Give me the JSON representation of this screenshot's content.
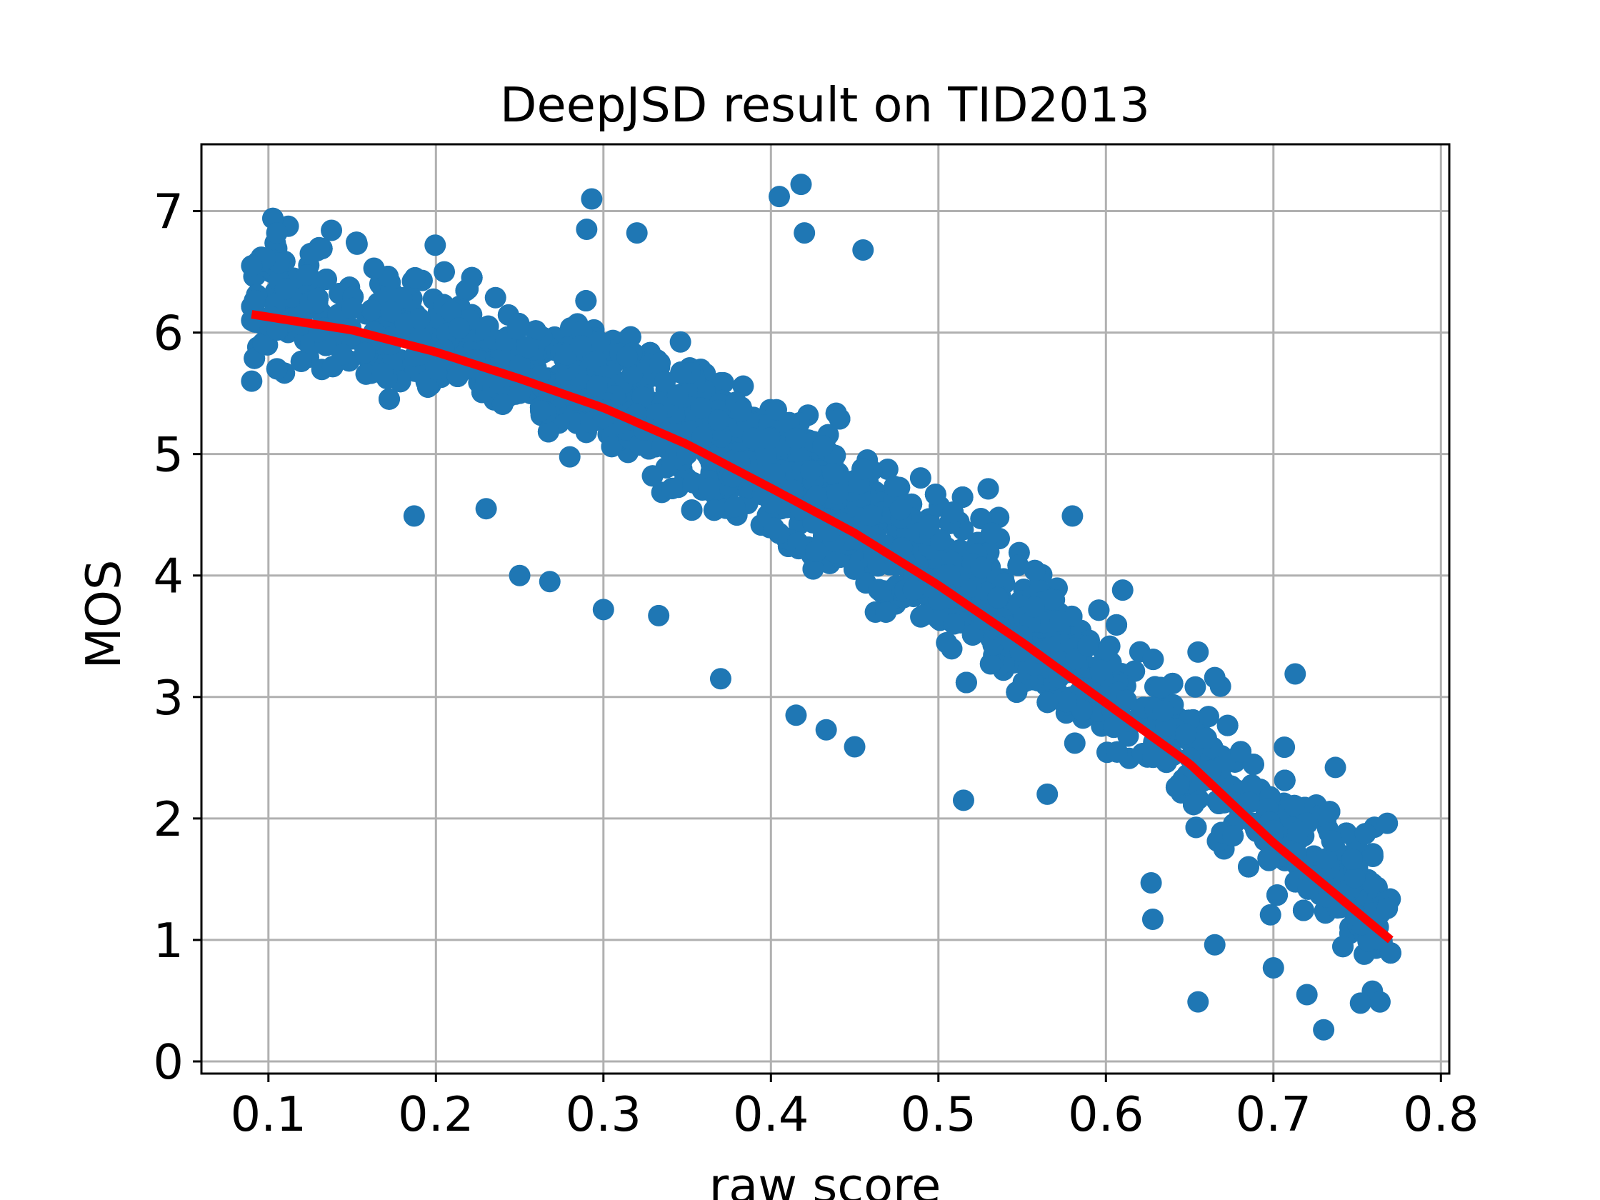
{
  "chart_data": {
    "type": "scatter",
    "title": "DeepJSD result on TID2013",
    "xlabel": "raw score",
    "ylabel": "MOS",
    "xlim": [
      0.06,
      0.805
    ],
    "ylim": [
      -0.1,
      7.55
    ],
    "xticks": [
      0.1,
      0.2,
      0.3,
      0.4,
      0.5,
      0.6,
      0.7,
      0.8
    ],
    "xtick_labels": [
      "0.1",
      "0.2",
      "0.3",
      "0.4",
      "0.5",
      "0.6",
      "0.7",
      "0.8"
    ],
    "yticks": [
      0,
      1,
      2,
      3,
      4,
      5,
      6,
      7
    ],
    "ytick_labels": [
      "0",
      "1",
      "2",
      "3",
      "4",
      "5",
      "6",
      "7"
    ],
    "grid": true,
    "colors": {
      "points": "#1f77b4",
      "fit_line": "#ff0000",
      "grid": "#b0b0b0"
    },
    "series": [
      {
        "kind": "scatter",
        "point_count": 3000,
        "approx_relation": "MOS ≈ fit(raw score) with vertical spread ~±0.6",
        "sample_points": [
          [
            0.09,
            6.55
          ],
          [
            0.105,
            6.82
          ],
          [
            0.125,
            6.65
          ],
          [
            0.163,
            6.53
          ],
          [
            0.205,
            6.5
          ],
          [
            0.293,
            7.1
          ],
          [
            0.29,
            6.85
          ],
          [
            0.32,
            6.82
          ],
          [
            0.405,
            7.12
          ],
          [
            0.418,
            7.22
          ],
          [
            0.42,
            6.82
          ],
          [
            0.455,
            6.68
          ],
          [
            0.187,
            4.49
          ],
          [
            0.23,
            4.55
          ],
          [
            0.25,
            4.0
          ],
          [
            0.268,
            3.95
          ],
          [
            0.3,
            3.72
          ],
          [
            0.333,
            3.67
          ],
          [
            0.37,
            3.15
          ],
          [
            0.415,
            2.85
          ],
          [
            0.433,
            2.73
          ],
          [
            0.45,
            2.59
          ],
          [
            0.515,
            2.15
          ],
          [
            0.565,
            2.2
          ],
          [
            0.58,
            4.49
          ],
          [
            0.61,
            3.88
          ],
          [
            0.655,
            3.37
          ],
          [
            0.665,
            3.16
          ],
          [
            0.713,
            3.19
          ],
          [
            0.627,
            1.47
          ],
          [
            0.628,
            1.17
          ],
          [
            0.655,
            0.49
          ],
          [
            0.665,
            0.96
          ],
          [
            0.7,
            0.77
          ],
          [
            0.72,
            0.55
          ],
          [
            0.73,
            0.26
          ],
          [
            0.752,
            0.48
          ],
          [
            0.768,
            1.96
          ],
          [
            0.768,
            1.26
          ],
          [
            0.737,
            2.42
          ],
          [
            0.09,
            5.6
          ],
          [
            0.09,
            6.1
          ],
          [
            0.15,
            6.2
          ],
          [
            0.2,
            5.7
          ],
          [
            0.25,
            5.5
          ],
          [
            0.3,
            5.3
          ],
          [
            0.35,
            5.0
          ],
          [
            0.4,
            4.6
          ],
          [
            0.45,
            4.3
          ],
          [
            0.5,
            3.8
          ],
          [
            0.55,
            3.5
          ],
          [
            0.6,
            3.0
          ],
          [
            0.65,
            2.5
          ],
          [
            0.7,
            1.9
          ],
          [
            0.75,
            1.2
          ]
        ]
      },
      {
        "kind": "line",
        "x": [
          0.09,
          0.15,
          0.2,
          0.25,
          0.3,
          0.35,
          0.4,
          0.45,
          0.5,
          0.55,
          0.6,
          0.65,
          0.7,
          0.77
        ],
        "values": [
          6.15,
          6.02,
          5.84,
          5.62,
          5.38,
          5.08,
          4.72,
          4.35,
          3.92,
          3.45,
          2.95,
          2.45,
          1.8,
          1.0
        ]
      }
    ]
  }
}
